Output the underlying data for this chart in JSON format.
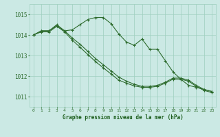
{
  "background_color": "#cbe9e4",
  "grid_color": "#9ecfbe",
  "line_color": "#2d6b2d",
  "xlabel": "Graphe pression niveau de la mer (hPa)",
  "xlabel_color": "#1a5c1a",
  "tick_color": "#2d6b2d",
  "ylim": [
    1010.5,
    1015.5
  ],
  "xlim": [
    -0.5,
    23.5
  ],
  "yticks": [
    1011,
    1012,
    1013,
    1014,
    1015
  ],
  "xticks": [
    0,
    1,
    2,
    3,
    4,
    5,
    6,
    7,
    8,
    9,
    10,
    11,
    12,
    13,
    14,
    15,
    16,
    17,
    18,
    19,
    20,
    21,
    22,
    23
  ],
  "series1": [
    1014.0,
    1014.2,
    1014.2,
    1014.5,
    1014.2,
    1014.25,
    1014.5,
    1014.75,
    1014.85,
    1014.85,
    1014.55,
    1014.05,
    1013.65,
    1013.5,
    1013.8,
    1013.3,
    1013.3,
    1012.75,
    1012.2,
    1011.85,
    1011.55,
    1011.45,
    1011.35,
    1011.25
  ],
  "series2": [
    1014.0,
    1014.2,
    1014.2,
    1014.45,
    1014.2,
    1013.85,
    1013.55,
    1013.2,
    1012.85,
    1012.55,
    1012.25,
    1011.95,
    1011.75,
    1011.6,
    1011.5,
    1011.5,
    1011.55,
    1011.7,
    1011.9,
    1011.9,
    1011.8,
    1011.55,
    1011.35,
    1011.25
  ],
  "series3": [
    1014.0,
    1014.15,
    1014.15,
    1014.42,
    1014.15,
    1013.75,
    1013.4,
    1013.05,
    1012.7,
    1012.4,
    1012.1,
    1011.8,
    1011.65,
    1011.52,
    1011.45,
    1011.45,
    1011.5,
    1011.65,
    1011.85,
    1011.85,
    1011.75,
    1011.5,
    1011.3,
    1011.2
  ]
}
